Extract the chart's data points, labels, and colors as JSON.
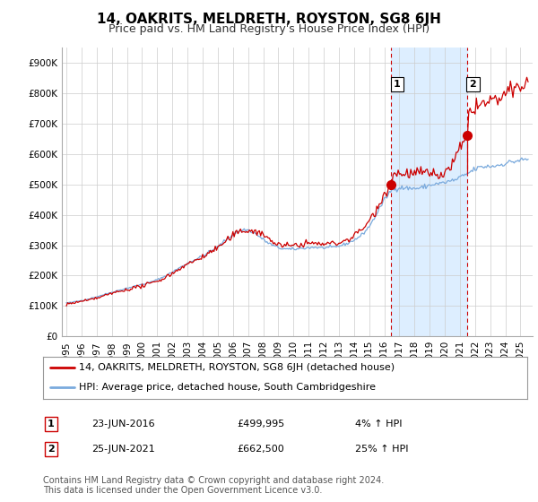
{
  "title": "14, OAKRITS, MELDRETH, ROYSTON, SG8 6JH",
  "subtitle": "Price paid vs. HM Land Registry's House Price Index (HPI)",
  "ylabel_ticks": [
    "£0",
    "£100K",
    "£200K",
    "£300K",
    "£400K",
    "£500K",
    "£600K",
    "£700K",
    "£800K",
    "£900K"
  ],
  "ytick_values": [
    0,
    100000,
    200000,
    300000,
    400000,
    500000,
    600000,
    700000,
    800000,
    900000
  ],
  "ylim": [
    0,
    950000
  ],
  "xlim_start": 1994.7,
  "xlim_end": 2025.8,
  "red_line_color": "#cc0000",
  "blue_line_color": "#7aaadd",
  "shade_color": "#ddeeff",
  "marker_color_red": "#cc0000",
  "purchase1_x": 2016.47,
  "purchase1_y": 499995,
  "purchase1_label": "1",
  "purchase2_x": 2021.48,
  "purchase2_y": 662500,
  "purchase2_label": "2",
  "vline1_x": 2016.47,
  "vline2_x": 2021.48,
  "legend_red_label": "14, OAKRITS, MELDRETH, ROYSTON, SG8 6JH (detached house)",
  "legend_blue_label": "HPI: Average price, detached house, South Cambridgeshire",
  "annot1_date": "23-JUN-2016",
  "annot1_price": "£499,995",
  "annot1_hpi": "4% ↑ HPI",
  "annot2_date": "25-JUN-2021",
  "annot2_price": "£662,500",
  "annot2_hpi": "25% ↑ HPI",
  "footer": "Contains HM Land Registry data © Crown copyright and database right 2024.\nThis data is licensed under the Open Government Licence v3.0.",
  "background_color": "#ffffff",
  "grid_color": "#cccccc",
  "title_fontsize": 11,
  "subtitle_fontsize": 9,
  "tick_fontsize": 7.5,
  "legend_fontsize": 8,
  "annot_fontsize": 8,
  "footer_fontsize": 7
}
